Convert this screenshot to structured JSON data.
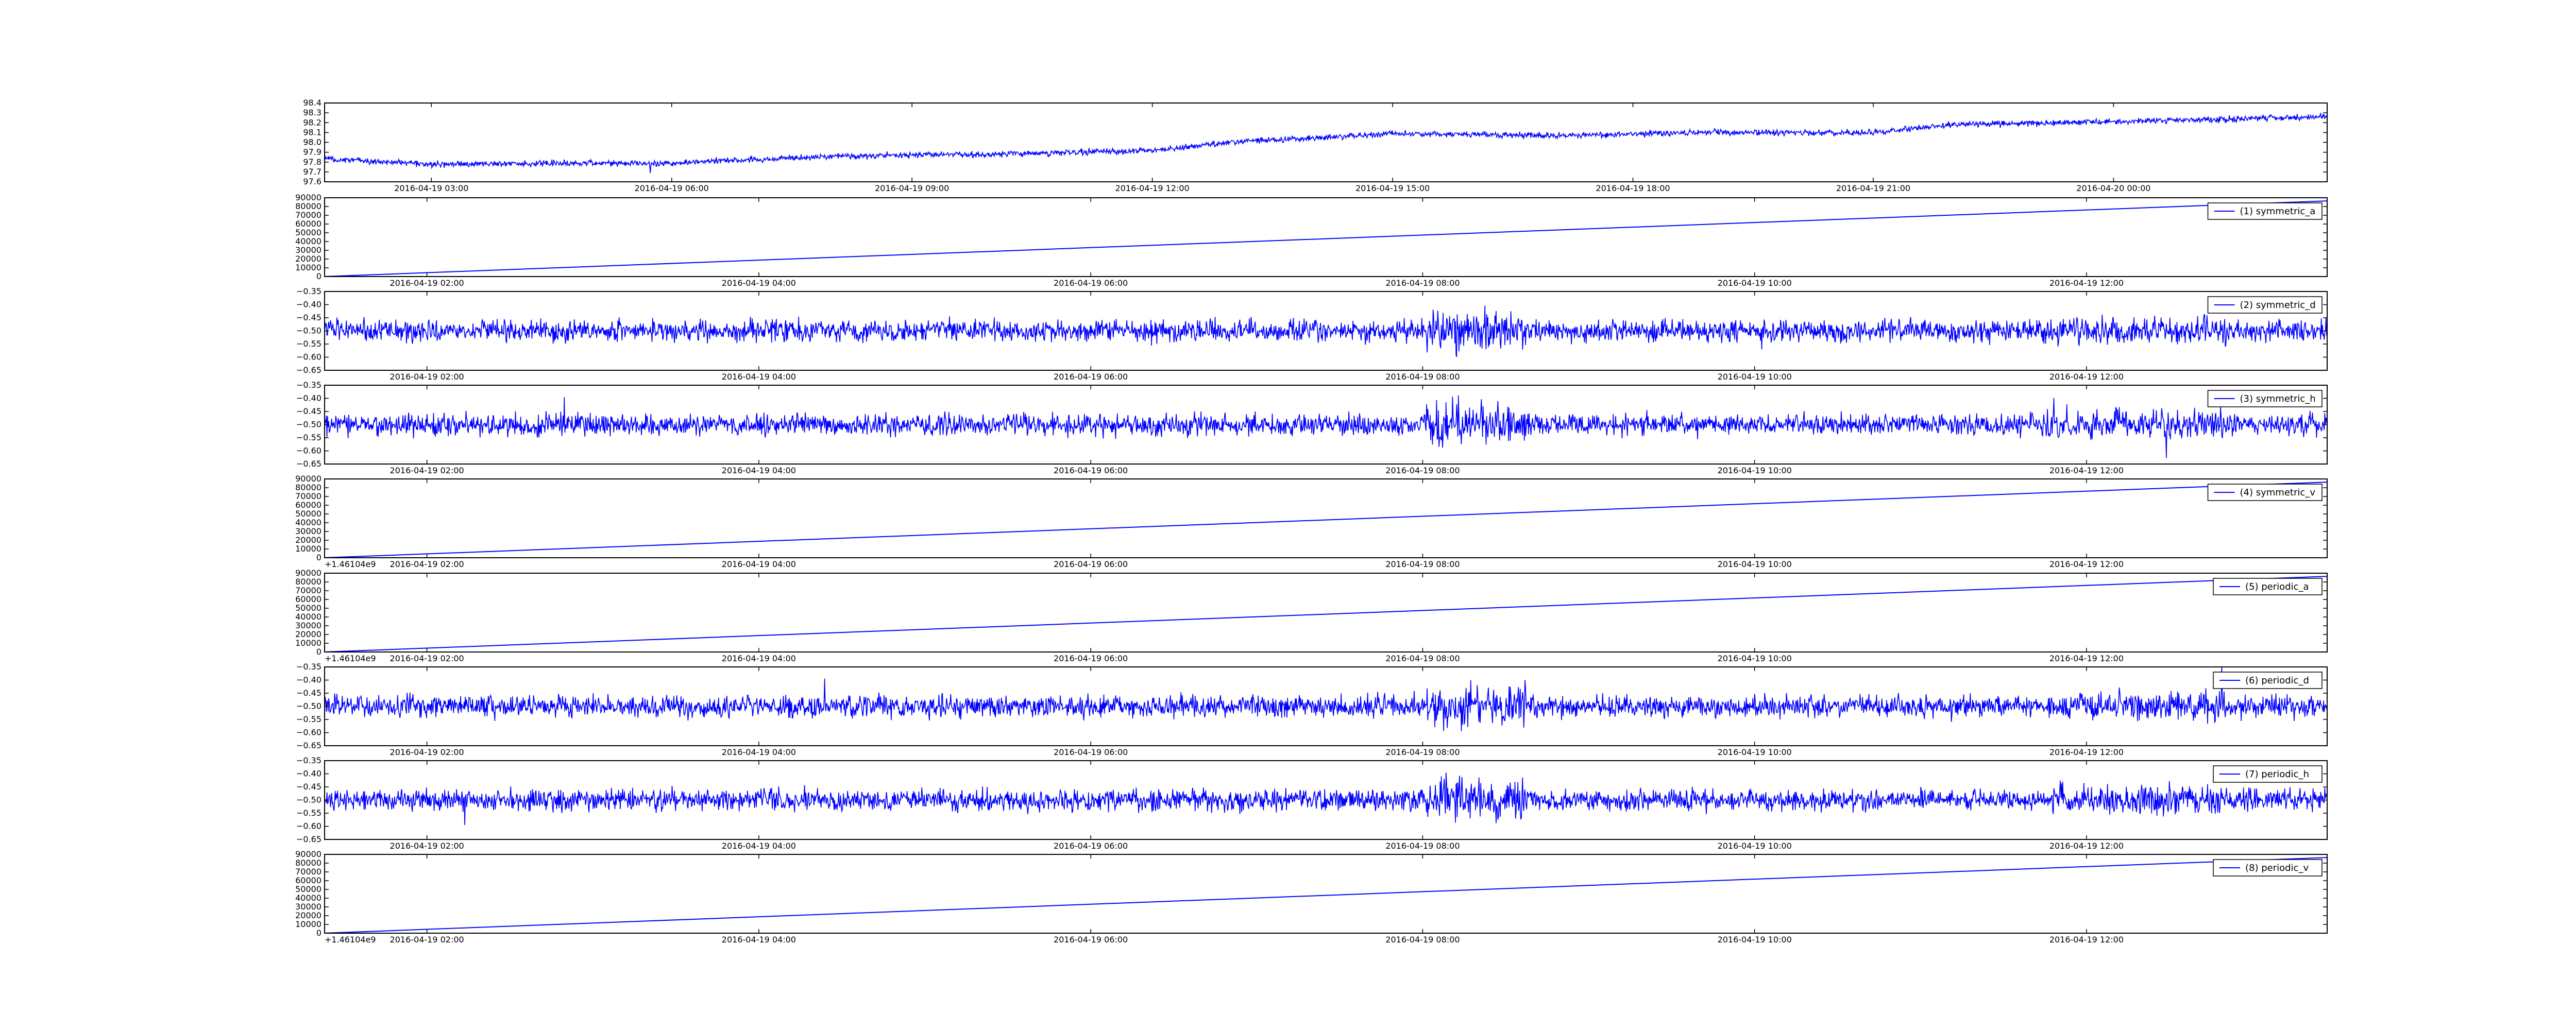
{
  "chart_data": [
    {
      "type": "line",
      "title": "",
      "offset_label": "",
      "x": [
        "2016-04-19 01:40",
        "2016-04-20 02:40"
      ],
      "xlim": [
        "2016-04-19 01:40",
        "2016-04-20 02:40"
      ],
      "xticks": [
        "2016-04-19 03:00",
        "2016-04-19 06:00",
        "2016-04-19 09:00",
        "2016-04-19 12:00",
        "2016-04-19 15:00",
        "2016-04-19 18:00",
        "2016-04-19 21:00",
        "2016-04-20 00:00"
      ],
      "ylim": [
        97.6,
        98.4
      ],
      "yticks": [
        "97.6",
        "97.7",
        "97.8",
        "97.9",
        "98.0",
        "98.1",
        "98.2",
        "98.3",
        "98.4"
      ],
      "legend": null,
      "series": [
        {
          "color": "#0000ff",
          "trend": [
            [
              "2016-04-19 01:40",
              97.83
            ],
            [
              "2016-04-19 03:00",
              97.78
            ],
            [
              "2016-04-19 06:00",
              97.79
            ],
            [
              "2016-04-19 08:00",
              97.86
            ],
            [
              "2016-04-19 10:00",
              97.88
            ],
            [
              "2016-04-19 12:00",
              97.92
            ],
            [
              "2016-04-19 13:00",
              98.0
            ],
            [
              "2016-04-19 15:00",
              98.09
            ],
            [
              "2016-04-19 17:00",
              98.07
            ],
            [
              "2016-04-19 19:00",
              98.1
            ],
            [
              "2016-04-19 21:00",
              98.1
            ],
            [
              "2016-04-19 22:00",
              98.18
            ],
            [
              "2016-04-20 00:00",
              98.21
            ],
            [
              "2016-04-20 02:40",
              98.26
            ]
          ],
          "noise_amplitude": 0.03
        }
      ]
    },
    {
      "type": "line",
      "offset_label": "",
      "xlim": [
        "2016-04-19 01:23",
        "2016-04-19 13:27"
      ],
      "xticks": [
        "2016-04-19 02:00",
        "2016-04-19 04:00",
        "2016-04-19 06:00",
        "2016-04-19 08:00",
        "2016-04-19 10:00",
        "2016-04-19 12:00"
      ],
      "ylim": [
        0,
        90000
      ],
      "yticks": [
        "0",
        "10000",
        "20000",
        "30000",
        "40000",
        "50000",
        "60000",
        "70000",
        "80000",
        "90000"
      ],
      "legend": "top-right",
      "series": [
        {
          "name": "(1) symmetric_a",
          "color": "#0000ff",
          "trend": [
            [
              "2016-04-19 01:23",
              0
            ],
            [
              "2016-04-19 13:27",
              86400
            ]
          ]
        }
      ]
    },
    {
      "type": "line",
      "offset_label": "",
      "xlim": [
        "2016-04-19 01:23",
        "2016-04-19 13:27"
      ],
      "xticks": [
        "2016-04-19 02:00",
        "2016-04-19 04:00",
        "2016-04-19 06:00",
        "2016-04-19 08:00",
        "2016-04-19 10:00",
        "2016-04-19 12:00"
      ],
      "ylim": [
        -0.65,
        -0.35
      ],
      "yticks": [
        "−0.65",
        "−0.60",
        "−0.55",
        "−0.50",
        "−0.45",
        "−0.40",
        "−0.35"
      ],
      "legend": "top-right",
      "series": [
        {
          "name": "(2) symmetric_d",
          "color": "#0000ff",
          "trend": [
            [
              "2016-04-19 01:23",
              -0.5
            ],
            [
              "2016-04-19 13:27",
              -0.5
            ]
          ],
          "noise_amplitude": 0.04
        }
      ]
    },
    {
      "type": "line",
      "offset_label": "",
      "xlim": [
        "2016-04-19 01:23",
        "2016-04-19 13:27"
      ],
      "xticks": [
        "2016-04-19 02:00",
        "2016-04-19 04:00",
        "2016-04-19 06:00",
        "2016-04-19 08:00",
        "2016-04-19 10:00",
        "2016-04-19 12:00"
      ],
      "ylim": [
        -0.65,
        -0.35
      ],
      "yticks": [
        "−0.65",
        "−0.60",
        "−0.55",
        "−0.50",
        "−0.45",
        "−0.40",
        "−0.35"
      ],
      "legend": "top-right",
      "series": [
        {
          "name": "(3) symmetric_h",
          "color": "#0000ff",
          "trend": [
            [
              "2016-04-19 01:23",
              -0.5
            ],
            [
              "2016-04-19 13:27",
              -0.5
            ]
          ],
          "noise_amplitude": 0.04
        }
      ]
    },
    {
      "type": "line",
      "offset_label": "+1.46104e9",
      "xlim": [
        "2016-04-19 01:23",
        "2016-04-19 13:27"
      ],
      "xticks": [
        "2016-04-19 02:00",
        "2016-04-19 04:00",
        "2016-04-19 06:00",
        "2016-04-19 08:00",
        "2016-04-19 10:00",
        "2016-04-19 12:00"
      ],
      "ylim": [
        0,
        90000
      ],
      "yticks": [
        "0",
        "10000",
        "20000",
        "30000",
        "40000",
        "50000",
        "60000",
        "70000",
        "80000",
        "90000"
      ],
      "legend": "top-right",
      "series": [
        {
          "name": "(4) symmetric_v",
          "color": "#0000ff",
          "trend": [
            [
              "2016-04-19 01:23",
              0
            ],
            [
              "2016-04-19 13:27",
              86400
            ]
          ]
        }
      ]
    },
    {
      "type": "line",
      "offset_label": "+1.46104e9",
      "xlim": [
        "2016-04-19 01:23",
        "2016-04-19 13:27"
      ],
      "xticks": [
        "2016-04-19 02:00",
        "2016-04-19 04:00",
        "2016-04-19 06:00",
        "2016-04-19 08:00",
        "2016-04-19 10:00",
        "2016-04-19 12:00"
      ],
      "ylim": [
        0,
        90000
      ],
      "yticks": [
        "0",
        "10000",
        "20000",
        "30000",
        "40000",
        "50000",
        "60000",
        "70000",
        "80000",
        "90000"
      ],
      "legend": "top-right",
      "series": [
        {
          "name": "(5) periodic_a",
          "color": "#0000ff",
          "trend": [
            [
              "2016-04-19 01:23",
              0
            ],
            [
              "2016-04-19 13:27",
              86400
            ]
          ]
        }
      ]
    },
    {
      "type": "line",
      "offset_label": "",
      "xlim": [
        "2016-04-19 01:23",
        "2016-04-19 13:27"
      ],
      "xticks": [
        "2016-04-19 02:00",
        "2016-04-19 04:00",
        "2016-04-19 06:00",
        "2016-04-19 08:00",
        "2016-04-19 10:00",
        "2016-04-19 12:00"
      ],
      "ylim": [
        -0.65,
        -0.35
      ],
      "yticks": [
        "−0.65",
        "−0.60",
        "−0.55",
        "−0.50",
        "−0.45",
        "−0.40",
        "−0.35"
      ],
      "legend": "top-right",
      "series": [
        {
          "name": "(6) periodic_d",
          "color": "#0000ff",
          "trend": [
            [
              "2016-04-19 01:23",
              -0.5
            ],
            [
              "2016-04-19 13:27",
              -0.5
            ]
          ],
          "noise_amplitude": 0.04
        }
      ]
    },
    {
      "type": "line",
      "offset_label": "",
      "xlim": [
        "2016-04-19 01:23",
        "2016-04-19 13:27"
      ],
      "xticks": [
        "2016-04-19 02:00",
        "2016-04-19 04:00",
        "2016-04-19 06:00",
        "2016-04-19 08:00",
        "2016-04-19 10:00",
        "2016-04-19 12:00"
      ],
      "ylim": [
        -0.65,
        -0.35
      ],
      "yticks": [
        "−0.65",
        "−0.60",
        "−0.55",
        "−0.50",
        "−0.45",
        "−0.40",
        "−0.35"
      ],
      "legend": "top-right",
      "series": [
        {
          "name": "(7) periodic_h",
          "color": "#0000ff",
          "trend": [
            [
              "2016-04-19 01:23",
              -0.5
            ],
            [
              "2016-04-19 13:27",
              -0.5
            ]
          ],
          "noise_amplitude": 0.04
        }
      ]
    },
    {
      "type": "line",
      "offset_label": "+1.46104e9",
      "xlim": [
        "2016-04-19 01:23",
        "2016-04-19 13:27"
      ],
      "xticks": [
        "2016-04-19 02:00",
        "2016-04-19 04:00",
        "2016-04-19 06:00",
        "2016-04-19 08:00",
        "2016-04-19 10:00",
        "2016-04-19 12:00"
      ],
      "ylim": [
        0,
        90000
      ],
      "yticks": [
        "0",
        "10000",
        "20000",
        "30000",
        "40000",
        "50000",
        "60000",
        "70000",
        "80000",
        "90000"
      ],
      "legend": "top-right",
      "series": [
        {
          "name": "(8) periodic_v",
          "color": "#0000ff",
          "trend": [
            [
              "2016-04-19 01:23",
              0
            ],
            [
              "2016-04-19 13:27",
              86400
            ]
          ]
        }
      ]
    }
  ]
}
